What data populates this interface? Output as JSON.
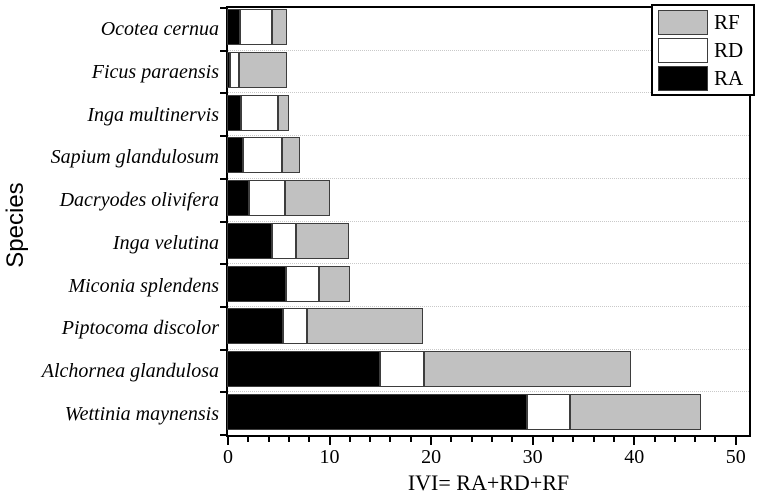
{
  "chart_data": {
    "type": "bar",
    "orientation": "horizontal",
    "stacked": true,
    "title": "",
    "xlabel": "IVI= RA+RD+RF",
    "ylabel": "Species",
    "xlim": [
      0,
      51.3
    ],
    "xticks": [
      0,
      10,
      20,
      30,
      40,
      50
    ],
    "minor_tick_step": 2,
    "grid": "dotted horizontal lines between categories",
    "legend_position": "top-right",
    "legend": [
      {
        "label": "RF",
        "color": "#c1c1c1"
      },
      {
        "label": "RD",
        "color": "#ffffff"
      },
      {
        "label": "RA",
        "color": "#000000"
      }
    ],
    "categories": [
      "Ocotea cernua",
      "Ficus paraensis",
      "Inga multinervis",
      "Sapium glandulosum",
      "Dacryodes olivifera",
      "Inga velutina",
      "Miconia splendens",
      "Piptocoma discolor",
      "Alchornea glandulosa",
      "Wettinia maynensis"
    ],
    "series": [
      {
        "name": "RA",
        "color": "#000000",
        "values": [
          1.3,
          0.3,
          1.4,
          1.6,
          2.2,
          4.4,
          5.8,
          5.5,
          15.1,
          29.5
        ]
      },
      {
        "name": "RD",
        "color": "#ffffff",
        "values": [
          3.1,
          0.9,
          3.6,
          3.8,
          3.5,
          2.4,
          3.3,
          2.4,
          4.3,
          4.3
        ]
      },
      {
        "name": "RF",
        "color": "#c1c1c1",
        "values": [
          1.5,
          4.7,
          1.1,
          1.8,
          4.4,
          5.2,
          3.0,
          11.4,
          20.4,
          12.9
        ]
      }
    ],
    "totals": [
      5.9,
      5.9,
      6.1,
      7.2,
      10.1,
      12.0,
      12.1,
      19.3,
      39.8,
      46.7
    ]
  }
}
